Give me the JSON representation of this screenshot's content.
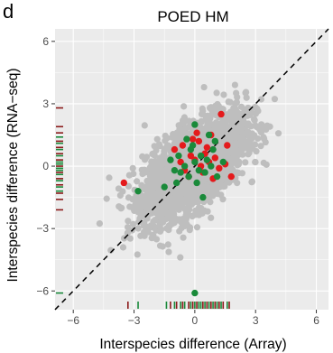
{
  "panel_label": "d",
  "chart_data": {
    "type": "scatter",
    "title": "POED HM",
    "xlabel": "Interspecies difference (Array)",
    "ylabel": "Interspecies difference (RNA−seq)",
    "xlim": [
      -6.9,
      6.6
    ],
    "ylim": [
      -6.9,
      6.6
    ],
    "x_ticks": [
      -6,
      -3,
      0,
      3,
      6
    ],
    "y_ticks": [
      -6,
      -3,
      0,
      3,
      6
    ],
    "x_tick_labels": [
      "−6",
      "−3",
      "0",
      "3",
      "6"
    ],
    "y_tick_labels": [
      "−6",
      "−3",
      "0",
      "3",
      "6"
    ],
    "grid": true,
    "reference_line": {
      "style": "dashed",
      "slope": 1,
      "intercept": 0,
      "color": "#000000"
    },
    "colors": {
      "background": "#ebebeb",
      "grid": "#ffffff",
      "background_points": "#bebebe",
      "red": "#e41a1c",
      "green": "#1a8a3a",
      "rug_red": "#8b1a1a"
    },
    "background_cloud": {
      "n": 2600,
      "sd": 1.25,
      "correlation": 0.62,
      "range": [
        -6,
        6
      ]
    },
    "series": [
      {
        "color": "red",
        "x": [
          -3.5,
          -0.7,
          -0.5,
          -0.2,
          0.0,
          0.3,
          0.5,
          0.7,
          1.0,
          1.2,
          1.5,
          1.8,
          -1.0,
          -0.3,
          0.2,
          0.8,
          0.4,
          -0.6,
          0.6,
          1.3,
          0.9,
          -0.1,
          0.1,
          1.6
        ],
        "y": [
          -0.8,
          0.2,
          -0.2,
          0.5,
          0.3,
          0.0,
          0.6,
          0.2,
          0.4,
          -0.1,
          0.1,
          -0.5,
          0.8,
          -0.5,
          1.2,
          1.5,
          -0.3,
          1.0,
          0.9,
          2.5,
          -0.6,
          1.3,
          1.6,
          1.0
        ]
      },
      {
        "color": "green",
        "x": [
          -2.8,
          -1.5,
          -1.2,
          -1.0,
          -0.8,
          -0.5,
          -0.3,
          -0.1,
          0.0,
          0.1,
          0.3,
          0.5,
          0.7,
          0.9,
          1.1,
          1.4,
          -0.9,
          -0.4,
          0.2,
          0.6,
          0.0,
          -0.2,
          0.4,
          1.0,
          -0.7,
          0.8,
          0.0
        ],
        "y": [
          -1.2,
          -1.0,
          0.3,
          -0.2,
          0.5,
          0.0,
          -0.5,
          1.0,
          0.2,
          -0.8,
          0.5,
          -0.3,
          1.5,
          0.8,
          -0.5,
          0.2,
          -0.8,
          1.3,
          -0.2,
          0.3,
          2.0,
          0.8,
          -1.5,
          1.2,
          -0.3,
          0.0,
          -6.1
        ]
      }
    ],
    "x_rug": [
      {
        "color": "rug_red",
        "values": [
          -3.3,
          -1.2,
          -0.9,
          -0.6,
          -0.3,
          -0.1,
          0.1,
          0.4,
          0.6,
          0.8,
          1.0,
          1.2,
          1.4,
          1.7
        ]
      },
      {
        "color": "green",
        "values": [
          -2.8,
          -1.4,
          -1.0,
          -0.7,
          -0.5,
          -0.2,
          0.0,
          0.2,
          0.3,
          0.5,
          0.7,
          0.9,
          1.1,
          1.3,
          1.6
        ]
      }
    ],
    "y_rug": [
      {
        "color": "rug_red",
        "values": [
          2.8,
          1.9,
          1.6,
          1.2,
          0.9,
          0.6,
          0.3,
          0.0,
          -0.3,
          -0.6,
          -0.9,
          -1.3,
          -1.6,
          -2.1
        ]
      },
      {
        "color": "green",
        "values": [
          1.4,
          1.1,
          0.8,
          0.5,
          0.2,
          0.1,
          -0.1,
          -0.2,
          -0.4,
          -0.7,
          -1.0,
          -1.2,
          -6.1
        ]
      }
    ]
  }
}
